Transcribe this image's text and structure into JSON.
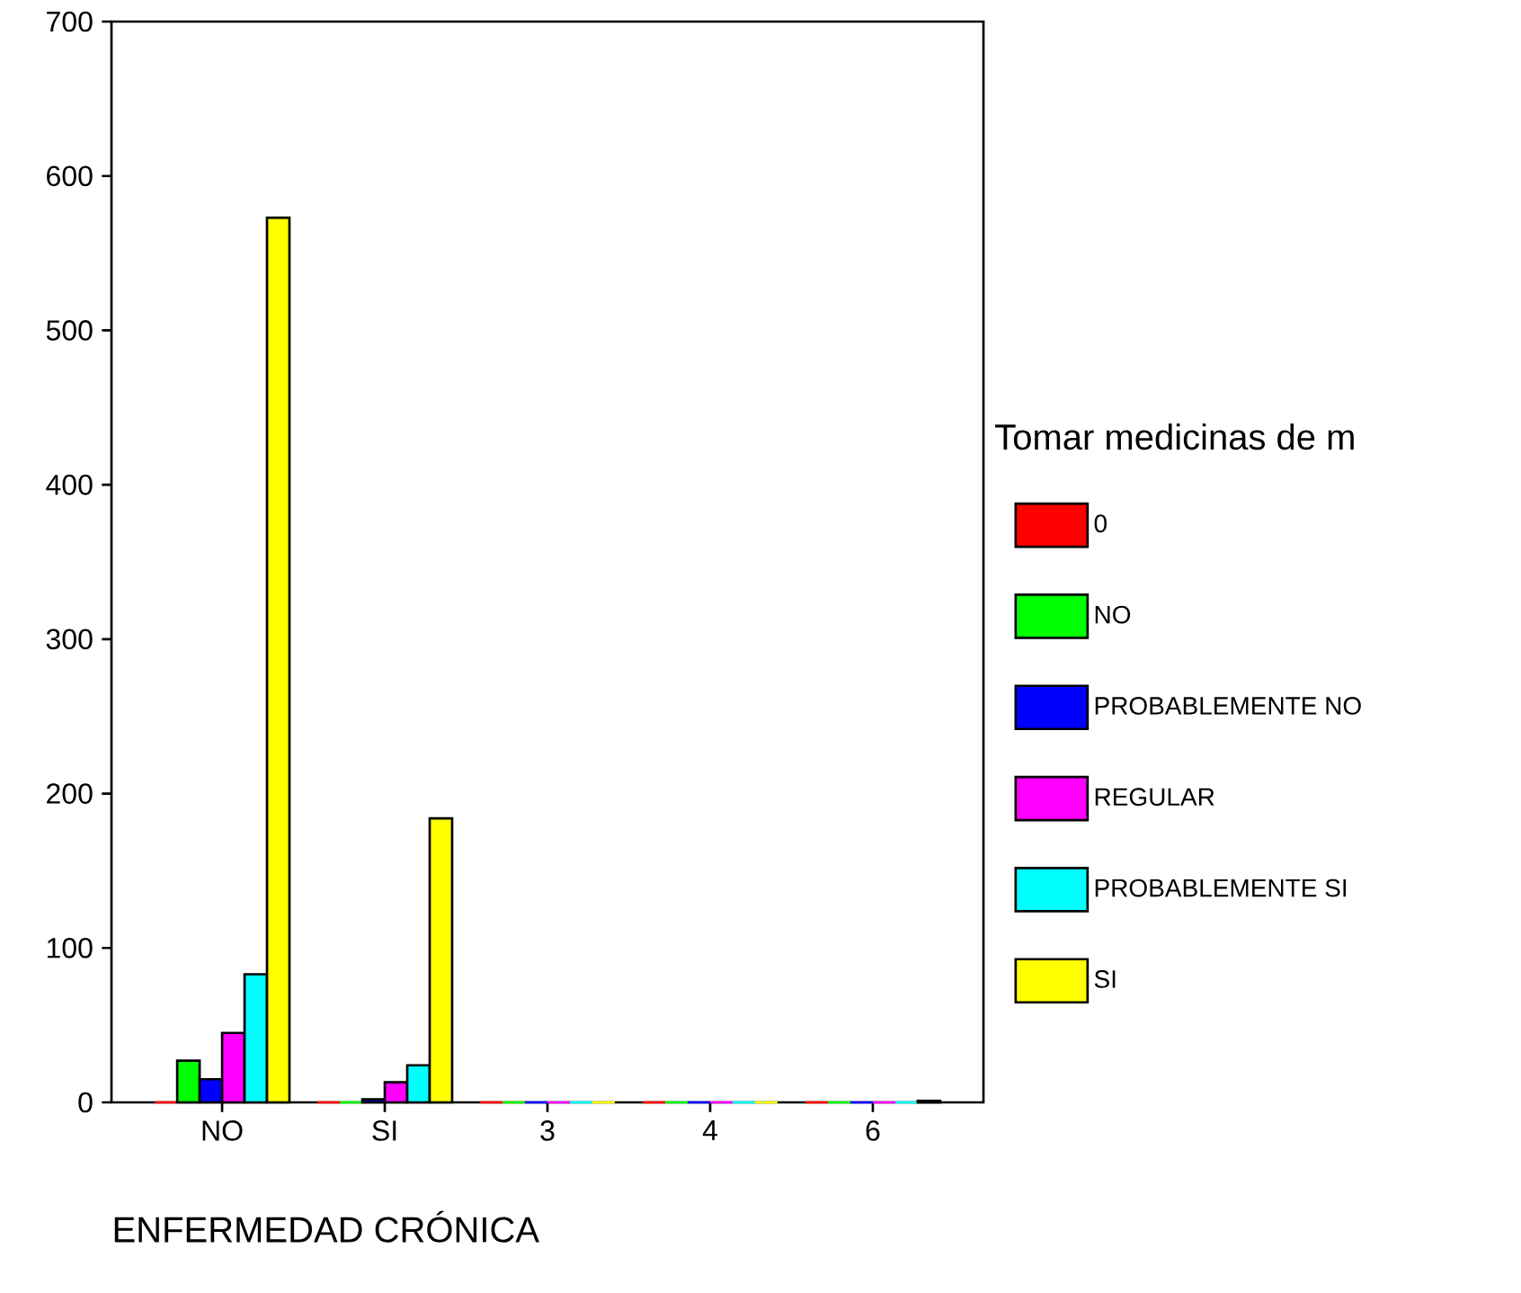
{
  "chart_data": {
    "type": "bar",
    "xlabel": "ENFERMEDAD CRÓNICA",
    "legend_title": "Tomar medicinas de m",
    "categories": [
      "NO",
      "SI",
      "3",
      "4",
      "6"
    ],
    "series": [
      {
        "name": "0",
        "color": "#ff0000",
        "values": [
          0,
          0,
          0,
          0,
          0
        ]
      },
      {
        "name": "NO",
        "color": "#00ff00",
        "values": [
          27,
          0,
          0,
          0,
          0
        ]
      },
      {
        "name": "PROBABLEMENTE NO",
        "color": "#0000ff",
        "values": [
          15,
          2,
          0,
          0,
          0
        ]
      },
      {
        "name": "REGULAR",
        "color": "#ff00ff",
        "values": [
          45,
          13,
          0,
          0,
          0
        ]
      },
      {
        "name": "PROBABLEMENTE SI",
        "color": "#00ffff",
        "values": [
          83,
          24,
          0,
          0,
          0
        ]
      },
      {
        "name": "SI",
        "color": "#ffff00",
        "values": [
          573,
          184,
          0,
          0,
          1
        ]
      }
    ],
    "ylim": [
      0,
      700
    ],
    "yticks": [
      0,
      100,
      200,
      300,
      400,
      500,
      600,
      700
    ],
    "grid": false,
    "legend": "right"
  }
}
